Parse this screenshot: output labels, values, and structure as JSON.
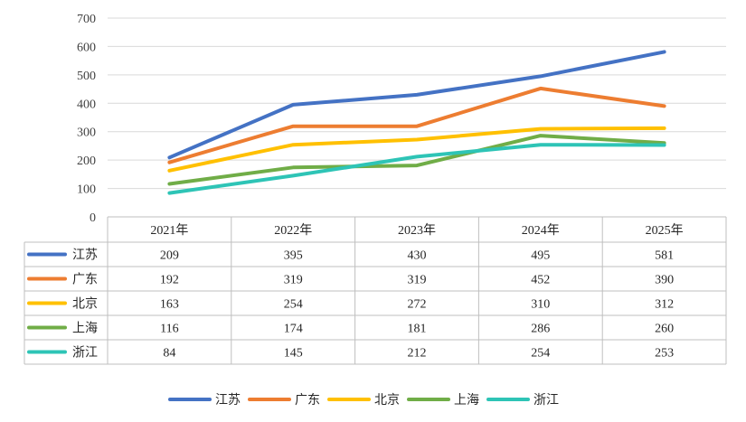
{
  "chart_data": {
    "type": "line",
    "categories": [
      "2021年",
      "2022年",
      "2023年",
      "2024年",
      "2025年"
    ],
    "series": [
      {
        "name": "江苏",
        "color": "#4472C4",
        "values": [
          209,
          395,
          430,
          495,
          581
        ]
      },
      {
        "name": "广东",
        "color": "#ED7D31",
        "values": [
          192,
          319,
          319,
          452,
          390
        ]
      },
      {
        "name": "北京",
        "color": "#FFC000",
        "values": [
          163,
          254,
          272,
          310,
          312
        ]
      },
      {
        "name": "上海",
        "color": "#70AD47",
        "values": [
          116,
          174,
          181,
          286,
          260
        ]
      },
      {
        "name": "浙江",
        "color": "#2EC4B6",
        "values": [
          84,
          145,
          212,
          254,
          253
        ]
      }
    ],
    "yticks": [
      "0",
      "100",
      "200",
      "300",
      "400",
      "500",
      "600",
      "700"
    ],
    "ylim": [
      0,
      700
    ],
    "grid": true,
    "data_table": true,
    "legend_position": "bottom"
  }
}
